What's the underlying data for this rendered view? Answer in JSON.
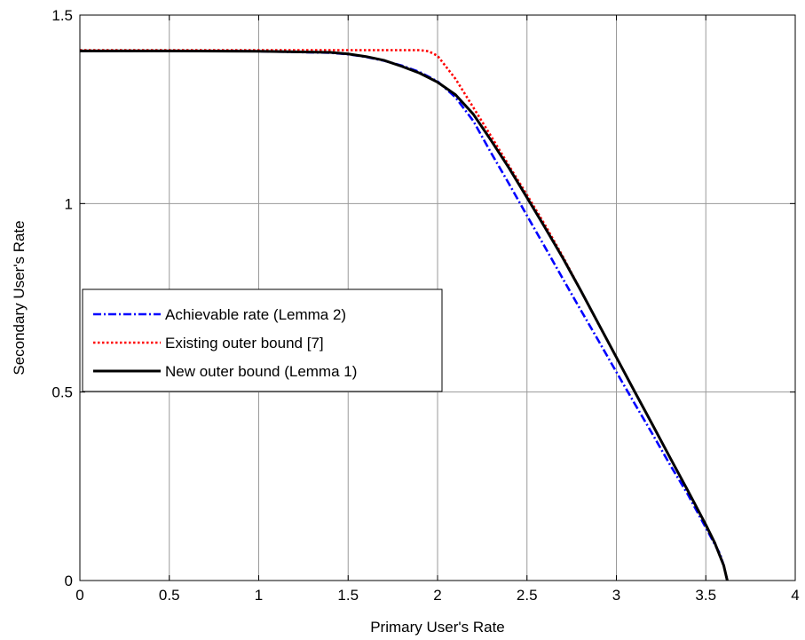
{
  "chart_data": {
    "type": "line",
    "title": "",
    "xlabel": "Primary User's Rate",
    "ylabel": "Secondary User's Rate",
    "xlim": [
      0,
      4
    ],
    "ylim": [
      0,
      1.5
    ],
    "xticks": [
      0,
      0.5,
      1,
      1.5,
      2,
      2.5,
      3,
      3.5,
      4
    ],
    "yticks": [
      0,
      0.5,
      1,
      1.5
    ],
    "xtick_labels": [
      "0",
      "0.5",
      "1",
      "1.5",
      "2",
      "2.5",
      "3",
      "3.5",
      "4"
    ],
    "ytick_labels": [
      "0",
      "0.5",
      "1",
      "1.5"
    ],
    "grid": true,
    "legend_position": "left",
    "series": [
      {
        "name": "Achievable rate (Lemma 2)",
        "color": "#0000ff",
        "dash": "dash-dot",
        "x": [
          0,
          0.5,
          1.0,
          1.4,
          1.5,
          1.6,
          1.7,
          1.8,
          1.9,
          2.0,
          2.1,
          2.2,
          2.3,
          2.4,
          2.5,
          2.6,
          2.7,
          2.8,
          2.9,
          3.0,
          3.1,
          3.2,
          3.3,
          3.4,
          3.5,
          3.58,
          3.6,
          3.62
        ],
        "y": [
          1.405,
          1.405,
          1.404,
          1.4,
          1.396,
          1.389,
          1.379,
          1.366,
          1.349,
          1.324,
          1.282,
          1.219,
          1.134,
          1.052,
          0.968,
          0.885,
          0.801,
          0.718,
          0.636,
          0.553,
          0.471,
          0.39,
          0.307,
          0.228,
          0.14,
          0.07,
          0.04,
          0.0
        ]
      },
      {
        "name": "Existing outer bound [7]",
        "color": "#ff0000",
        "dash": "dotted",
        "x": [
          0,
          0.5,
          1.0,
          1.5,
          1.9,
          1.95,
          2.0,
          2.1,
          2.2,
          2.3,
          2.4,
          2.5,
          2.6,
          2.7,
          2.8,
          2.9,
          3.0,
          3.1,
          3.2,
          3.3,
          3.4,
          3.5,
          3.55,
          3.6,
          3.62
        ],
        "y": [
          1.407,
          1.407,
          1.407,
          1.407,
          1.407,
          1.404,
          1.392,
          1.331,
          1.255,
          1.178,
          1.1,
          1.023,
          0.944,
          0.86,
          0.77,
          0.68,
          0.592,
          0.503,
          0.415,
          0.326,
          0.238,
          0.148,
          0.1,
          0.04,
          0.0
        ]
      },
      {
        "name": "New outer bound (Lemma 1)",
        "color": "#000000",
        "dash": "solid",
        "x": [
          0,
          0.5,
          1.0,
          1.4,
          1.5,
          1.6,
          1.7,
          1.8,
          1.9,
          2.0,
          2.1,
          2.2,
          2.3,
          2.4,
          2.5,
          2.6,
          2.7,
          2.8,
          2.9,
          3.0,
          3.1,
          3.2,
          3.3,
          3.4,
          3.5,
          3.55,
          3.6,
          3.62
        ],
        "y": [
          1.405,
          1.405,
          1.404,
          1.401,
          1.397,
          1.39,
          1.38,
          1.364,
          1.346,
          1.322,
          1.289,
          1.237,
          1.167,
          1.094,
          1.016,
          0.937,
          0.856,
          0.77,
          0.681,
          0.592,
          0.503,
          0.415,
          0.326,
          0.238,
          0.148,
          0.1,
          0.04,
          0.0
        ]
      }
    ]
  }
}
